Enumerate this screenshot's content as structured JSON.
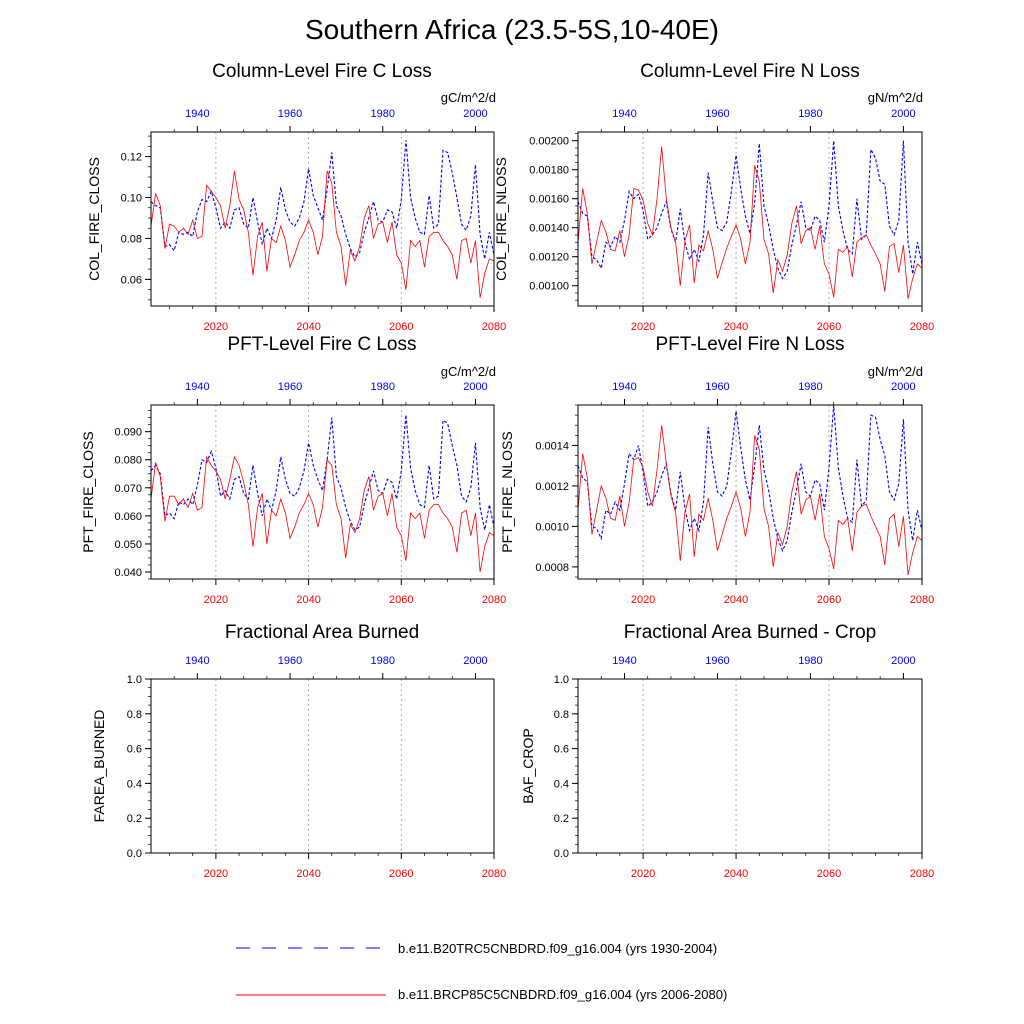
{
  "page": {
    "title": "Southern Africa (23.5-5S,10-40E)"
  },
  "colors": {
    "historical": "#0000ff",
    "future": "#ff0000",
    "grid": "#999999"
  },
  "legend": {
    "historical": "b.e11.B20TRC5CNBDRD.f09_g16.004 (yrs 1930-2004)",
    "future": "b.e11.BRCP85C5CNBDRD.f09_g16.004 (yrs 2006-2080)"
  },
  "chart_data": [
    {
      "type": "line",
      "title": "Column-Level Fire C Loss",
      "ylabel": "COL_FIRE_CLOSS",
      "units": "gC/m^2/d",
      "ylim": [
        0.047,
        0.132
      ],
      "yticks": [
        0.06,
        0.08,
        0.1,
        0.12
      ],
      "ytick_labels": [
        "0.06",
        "0.08",
        "0.10",
        "0.12"
      ],
      "minor_step": 0.005,
      "bottom_xaxis": {
        "range": [
          2006,
          2080
        ],
        "ticks": [
          2020,
          2040,
          2060,
          2080
        ]
      },
      "top_xaxis": {
        "range": [
          1930,
          2004
        ],
        "ticks": [
          1940,
          1960,
          1980,
          2000
        ]
      },
      "series": [
        {
          "name": "historical",
          "style": "dashed",
          "x_start": 1930,
          "values": [
            0.098,
            0.096,
            0.095,
            0.076,
            0.077,
            0.074,
            0.083,
            0.082,
            0.083,
            0.081,
            0.093,
            0.099,
            0.098,
            0.103,
            0.095,
            0.085,
            0.088,
            0.085,
            0.094,
            0.095,
            0.087,
            0.085,
            0.1,
            0.088,
            0.077,
            0.085,
            0.08,
            0.089,
            0.105,
            0.094,
            0.088,
            0.086,
            0.09,
            0.098,
            0.114,
            0.101,
            0.095,
            0.089,
            0.104,
            0.122,
            0.096,
            0.091,
            0.082,
            0.075,
            0.071,
            0.073,
            0.083,
            0.09,
            0.098,
            0.089,
            0.088,
            0.094,
            0.093,
            0.085,
            0.099,
            0.128,
            0.1,
            0.09,
            0.083,
            0.082,
            0.101,
            0.085,
            0.087,
            0.123,
            0.122,
            0.112,
            0.1,
            0.087,
            0.084,
            0.091,
            0.116,
            0.082,
            0.07,
            0.083,
            0.072
          ]
        },
        {
          "name": "future",
          "style": "solid",
          "x_start": 2006,
          "values": [
            0.086,
            0.102,
            0.096,
            0.075,
            0.087,
            0.086,
            0.083,
            0.085,
            0.082,
            0.089,
            0.08,
            0.081,
            0.106,
            0.103,
            0.1,
            0.096,
            0.085,
            0.096,
            0.113,
            0.099,
            0.094,
            0.083,
            0.062,
            0.081,
            0.088,
            0.064,
            0.08,
            0.078,
            0.086,
            0.079,
            0.066,
            0.072,
            0.079,
            0.083,
            0.089,
            0.083,
            0.072,
            0.081,
            0.113,
            0.107,
            0.083,
            0.076,
            0.057,
            0.074,
            0.069,
            0.076,
            0.09,
            0.096,
            0.08,
            0.087,
            0.088,
            0.078,
            0.088,
            0.072,
            0.068,
            0.055,
            0.079,
            0.076,
            0.079,
            0.066,
            0.081,
            0.083,
            0.083,
            0.079,
            0.076,
            0.072,
            0.06,
            0.079,
            0.08,
            0.068,
            0.079,
            0.051,
            0.063,
            0.07,
            0.069
          ]
        }
      ]
    },
    {
      "type": "line",
      "title": "Column-Level Fire N Loss",
      "ylabel": "COL_FIRE_NLOSS",
      "units": "gN/m^2/d",
      "ylim": [
        0.00086,
        0.00206
      ],
      "yticks": [
        0.001,
        0.0012,
        0.0014,
        0.0016,
        0.0018,
        0.002
      ],
      "ytick_labels": [
        "0.00100",
        "0.00120",
        "0.00140",
        "0.00160",
        "0.00180",
        "0.00200"
      ],
      "minor_step": 5e-05,
      "bottom_xaxis": {
        "range": [
          2006,
          2080
        ],
        "ticks": [
          2020,
          2040,
          2060,
          2080
        ]
      },
      "top_xaxis": {
        "range": [
          1930,
          2004
        ],
        "ticks": [
          1940,
          1960,
          1980,
          2000
        ]
      },
      "series": [
        {
          "name": "historical",
          "style": "dashed",
          "x_start": 1930,
          "values": [
            0.00158,
            0.0015,
            0.00148,
            0.0012,
            0.00118,
            0.00112,
            0.0013,
            0.00127,
            0.00134,
            0.0013,
            0.00145,
            0.00165,
            0.0016,
            0.00163,
            0.00152,
            0.00132,
            0.00135,
            0.0014,
            0.0015,
            0.00158,
            0.00139,
            0.0013,
            0.00153,
            0.0013,
            0.00118,
            0.00125,
            0.00117,
            0.00135,
            0.00178,
            0.00158,
            0.0014,
            0.00138,
            0.00144,
            0.00165,
            0.0019,
            0.00167,
            0.00148,
            0.00136,
            0.00157,
            0.00198,
            0.00155,
            0.00142,
            0.00125,
            0.00112,
            0.00105,
            0.0011,
            0.00128,
            0.00142,
            0.00158,
            0.0014,
            0.00138,
            0.00148,
            0.00145,
            0.0013,
            0.00155,
            0.002,
            0.00155,
            0.00138,
            0.00125,
            0.00122,
            0.0016,
            0.00132,
            0.00135,
            0.00194,
            0.00188,
            0.00172,
            0.0017,
            0.00141,
            0.00135,
            0.00145,
            0.002,
            0.0013,
            0.00108,
            0.0013,
            0.00115
          ]
        },
        {
          "name": "future",
          "style": "solid",
          "x_start": 2006,
          "values": [
            0.0013,
            0.00167,
            0.0015,
            0.00115,
            0.0013,
            0.00145,
            0.00137,
            0.00125,
            0.00124,
            0.00138,
            0.0012,
            0.00135,
            0.00167,
            0.00166,
            0.00159,
            0.00143,
            0.00135,
            0.0016,
            0.00196,
            0.0016,
            0.0014,
            0.0013,
            0.001,
            0.00131,
            0.00142,
            0.00102,
            0.00128,
            0.00124,
            0.00138,
            0.00125,
            0.00105,
            0.00116,
            0.00126,
            0.00134,
            0.00142,
            0.00132,
            0.00115,
            0.0013,
            0.00183,
            0.00172,
            0.00132,
            0.00122,
            0.00095,
            0.00118,
            0.0011,
            0.00121,
            0.00143,
            0.00155,
            0.00129,
            0.00138,
            0.0014,
            0.00125,
            0.00141,
            0.00115,
            0.00108,
            0.00092,
            0.00125,
            0.00123,
            0.00127,
            0.00106,
            0.0013,
            0.00133,
            0.00135,
            0.00128,
            0.00122,
            0.00115,
            0.00096,
            0.00127,
            0.00129,
            0.00109,
            0.00128,
            0.00091,
            0.00105,
            0.00115,
            0.00112
          ]
        }
      ]
    },
    {
      "type": "line",
      "title": "PFT-Level Fire C Loss",
      "ylabel": "PFT_FIRE_CLOSS",
      "units": "gC/m^2/d",
      "ylim": [
        0.0375,
        0.0995
      ],
      "yticks": [
        0.04,
        0.05,
        0.06,
        0.07,
        0.08,
        0.09
      ],
      "ytick_labels": [
        "0.040",
        "0.050",
        "0.060",
        "0.070",
        "0.080",
        "0.090"
      ],
      "minor_step": 0.0025,
      "bottom_xaxis": {
        "range": [
          2006,
          2080
        ],
        "ticks": [
          2020,
          2040,
          2060,
          2080
        ]
      },
      "top_xaxis": {
        "range": [
          1930,
          2004
        ],
        "ticks": [
          1940,
          1960,
          1980,
          2000
        ]
      },
      "series": [
        {
          "name": "historical",
          "style": "dashed",
          "x_start": 1930,
          "values": [
            0.076,
            0.078,
            0.075,
            0.06,
            0.061,
            0.059,
            0.065,
            0.064,
            0.066,
            0.064,
            0.071,
            0.08,
            0.079,
            0.083,
            0.077,
            0.067,
            0.069,
            0.066,
            0.073,
            0.074,
            0.068,
            0.066,
            0.078,
            0.068,
            0.06,
            0.066,
            0.062,
            0.069,
            0.081,
            0.073,
            0.068,
            0.067,
            0.07,
            0.076,
            0.086,
            0.078,
            0.073,
            0.069,
            0.08,
            0.095,
            0.074,
            0.07,
            0.063,
            0.058,
            0.055,
            0.056,
            0.064,
            0.07,
            0.076,
            0.069,
            0.068,
            0.073,
            0.072,
            0.066,
            0.076,
            0.096,
            0.077,
            0.069,
            0.064,
            0.063,
            0.078,
            0.066,
            0.067,
            0.094,
            0.093,
            0.085,
            0.078,
            0.067,
            0.065,
            0.07,
            0.086,
            0.063,
            0.055,
            0.064,
            0.056
          ]
        },
        {
          "name": "future",
          "style": "solid",
          "x_start": 2006,
          "values": [
            0.066,
            0.079,
            0.074,
            0.058,
            0.067,
            0.067,
            0.064,
            0.066,
            0.063,
            0.068,
            0.062,
            0.063,
            0.081,
            0.078,
            0.076,
            0.073,
            0.066,
            0.073,
            0.081,
            0.078,
            0.072,
            0.064,
            0.049,
            0.063,
            0.068,
            0.05,
            0.062,
            0.06,
            0.066,
            0.061,
            0.052,
            0.056,
            0.061,
            0.064,
            0.068,
            0.064,
            0.056,
            0.063,
            0.08,
            0.078,
            0.064,
            0.059,
            0.045,
            0.057,
            0.054,
            0.059,
            0.069,
            0.074,
            0.062,
            0.067,
            0.068,
            0.06,
            0.068,
            0.056,
            0.053,
            0.044,
            0.061,
            0.059,
            0.061,
            0.052,
            0.062,
            0.064,
            0.064,
            0.061,
            0.059,
            0.056,
            0.047,
            0.061,
            0.062,
            0.053,
            0.061,
            0.04,
            0.049,
            0.054,
            0.053
          ]
        }
      ]
    },
    {
      "type": "line",
      "title": "PFT-Level Fire N Loss",
      "ylabel": "PFT_FIRE_NLOSS",
      "units": "gN/m^2/d",
      "ylim": [
        0.00074,
        0.0016
      ],
      "yticks": [
        0.0008,
        0.001,
        0.0012,
        0.0014
      ],
      "ytick_labels": [
        "0.0008",
        "0.0010",
        "0.0012",
        "0.0014"
      ],
      "minor_step": 5e-05,
      "bottom_xaxis": {
        "range": [
          2006,
          2080
        ],
        "ticks": [
          2020,
          2040,
          2060,
          2080
        ]
      },
      "top_xaxis": {
        "range": [
          1930,
          2004
        ],
        "ticks": [
          1940,
          1960,
          1980,
          2000
        ]
      },
      "series": [
        {
          "name": "historical",
          "style": "dashed",
          "x_start": 1930,
          "values": [
            0.0013,
            0.00124,
            0.00122,
            0.001,
            0.00099,
            0.00094,
            0.00108,
            0.00106,
            0.00112,
            0.00108,
            0.00121,
            0.00136,
            0.00133,
            0.0014,
            0.00127,
            0.0011,
            0.00112,
            0.00117,
            0.00125,
            0.00131,
            0.00116,
            0.00108,
            0.00127,
            0.00109,
            0.00098,
            0.00104,
            0.00098,
            0.00112,
            0.00149,
            0.00131,
            0.00117,
            0.00115,
            0.0012,
            0.00137,
            0.00157,
            0.00139,
            0.00123,
            0.00113,
            0.0013,
            0.0015,
            0.00128,
            0.00118,
            0.00104,
            0.00094,
            0.00088,
            0.00093,
            0.00107,
            0.00118,
            0.00131,
            0.00117,
            0.00115,
            0.00123,
            0.00121,
            0.00108,
            0.00129,
            0.0016,
            0.00129,
            0.00115,
            0.00104,
            0.00102,
            0.00133,
            0.0011,
            0.00113,
            0.00155,
            0.00154,
            0.00143,
            0.00135,
            0.00117,
            0.00113,
            0.00121,
            0.00153,
            0.00108,
            0.00093,
            0.00108,
            0.00098
          ]
        },
        {
          "name": "future",
          "style": "solid",
          "x_start": 2006,
          "values": [
            0.00108,
            0.00136,
            0.00124,
            0.00096,
            0.00108,
            0.0012,
            0.00114,
            0.00104,
            0.00103,
            0.00115,
            0.001,
            0.00112,
            0.00133,
            0.00134,
            0.00129,
            0.00117,
            0.0011,
            0.00128,
            0.0015,
            0.00131,
            0.00115,
            0.00107,
            0.00083,
            0.00107,
            0.00116,
            0.00085,
            0.00106,
            0.00103,
            0.00114,
            0.00103,
            0.00088,
            0.00096,
            0.00104,
            0.0011,
            0.00117,
            0.00109,
            0.00095,
            0.00107,
            0.00145,
            0.00138,
            0.00109,
            0.001,
            0.0008,
            0.00097,
            0.00091,
            0.001,
            0.00117,
            0.00127,
            0.00106,
            0.00113,
            0.00115,
            0.00103,
            0.00116,
            0.00095,
            0.00089,
            0.00079,
            0.00103,
            0.00101,
            0.00104,
            0.00088,
            0.00107,
            0.0011,
            0.00111,
            0.00105,
            0.001,
            0.00095,
            0.00081,
            0.00104,
            0.00106,
            0.0009,
            0.00105,
            0.00076,
            0.00087,
            0.00095,
            0.00093
          ]
        }
      ]
    },
    {
      "type": "line",
      "title": "Fractional Area Burned",
      "ylabel": "FAREA_BURNED",
      "units": "",
      "ylim": [
        0.0,
        1.0
      ],
      "yticks": [
        0.0,
        0.2,
        0.4,
        0.6,
        0.8,
        1.0
      ],
      "ytick_labels": [
        "0.0",
        "0.2",
        "0.4",
        "0.6",
        "0.8",
        "1.0"
      ],
      "minor_step": 0.05,
      "bottom_xaxis": {
        "range": [
          2006,
          2080
        ],
        "ticks": [
          2020,
          2040,
          2060,
          2080
        ]
      },
      "top_xaxis": {
        "range": [
          1930,
          2004
        ],
        "ticks": [
          1940,
          1960,
          1980,
          2000
        ]
      },
      "series": []
    },
    {
      "type": "line",
      "title": "Fractional Area Burned - Crop",
      "ylabel": "BAF_CROP",
      "units": "",
      "ylim": [
        0.0,
        1.0
      ],
      "yticks": [
        0.0,
        0.2,
        0.4,
        0.6,
        0.8,
        1.0
      ],
      "ytick_labels": [
        "0.0",
        "0.2",
        "0.4",
        "0.6",
        "0.8",
        "1.0"
      ],
      "minor_step": 0.05,
      "bottom_xaxis": {
        "range": [
          2006,
          2080
        ],
        "ticks": [
          2020,
          2040,
          2060,
          2080
        ]
      },
      "top_xaxis": {
        "range": [
          1930,
          2004
        ],
        "ticks": [
          1940,
          1960,
          1980,
          2000
        ]
      },
      "series": []
    }
  ]
}
